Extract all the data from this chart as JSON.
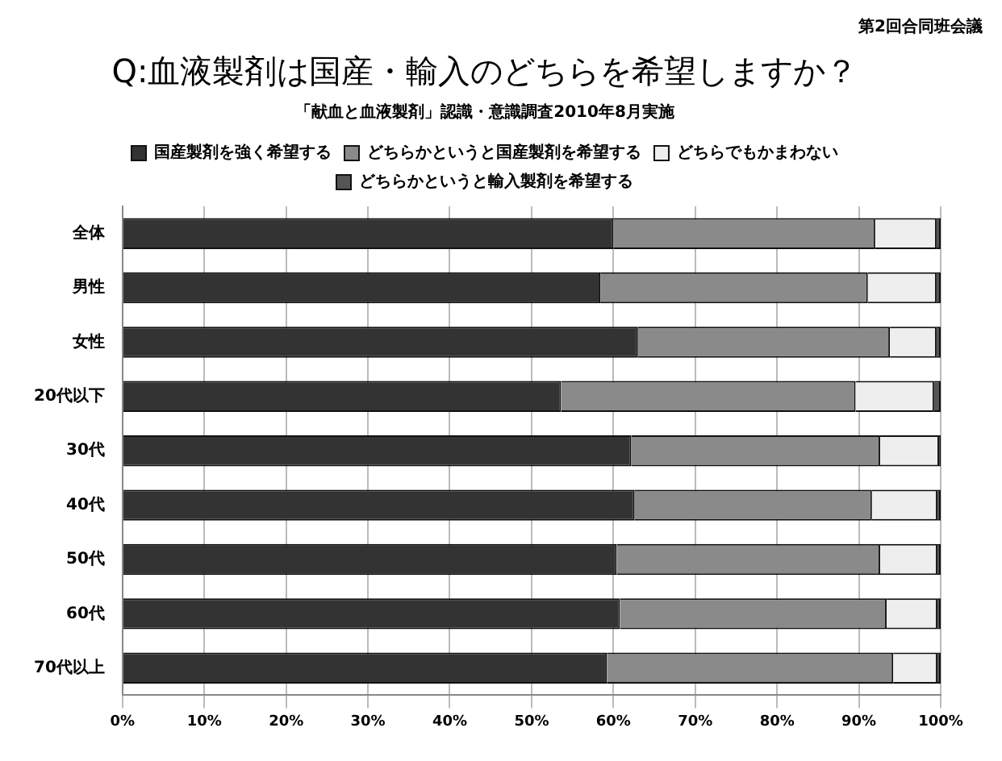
{
  "chart_data": {
    "type": "bar",
    "orientation": "horizontal",
    "stacked": true,
    "title": "Q:血液製剤は国産・輸入のどちらを希望しますか？",
    "subtitle": "「献血と血液製剤」認識・意識調査2010年8月実施",
    "annotations": [
      "第2回合同班会議"
    ],
    "categories": [
      "全体",
      "男性",
      "女性",
      "20代以下",
      "30代",
      "40代",
      "50代",
      "60代",
      "70代以上"
    ],
    "series": [
      {
        "name": "国産製剤を強く希望する",
        "color": "#333333",
        "values": [
          60,
          58.4,
          63,
          53.6,
          62.2,
          62.6,
          60.4,
          60.8,
          59.2
        ]
      },
      {
        "name": "どちらかというと国産製剤を希望する",
        "color": "#8a8a8a",
        "values": [
          32,
          32.7,
          30.8,
          36,
          30.4,
          29,
          32.2,
          32.6,
          35
        ]
      },
      {
        "name": "どちらでもかまわない",
        "color": "#eeeeee",
        "values": [
          7.5,
          8.4,
          5.7,
          9.6,
          7.2,
          8,
          7,
          6.2,
          5.4
        ]
      },
      {
        "name": "どちらかというと輸入製剤を希望する",
        "color": "#555555",
        "values": [
          0.5,
          0.5,
          0.5,
          0.8,
          0.2,
          0.4,
          0.4,
          0.4,
          0.4
        ]
      }
    ],
    "xlim": [
      0,
      100
    ],
    "xticks": [
      {
        "value": 0,
        "label": "0%"
      },
      {
        "value": 10,
        "label": "10%"
      },
      {
        "value": 20,
        "label": "20%"
      },
      {
        "value": 30,
        "label": "30%"
      },
      {
        "value": 40,
        "label": "40%"
      },
      {
        "value": 50,
        "label": "50%"
      },
      {
        "value": 60,
        "label": "60%"
      },
      {
        "value": 70,
        "label": "70%"
      },
      {
        "value": 80,
        "label": "80%"
      },
      {
        "value": 90,
        "label": "90%"
      },
      {
        "value": 100,
        "label": "100%"
      }
    ],
    "grid": "x",
    "legend": "top"
  }
}
